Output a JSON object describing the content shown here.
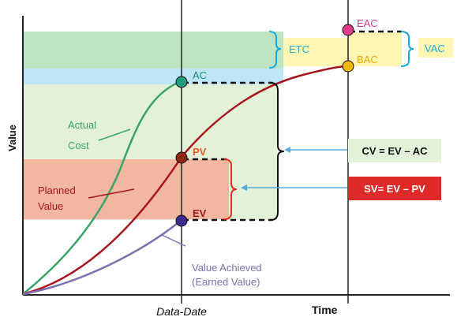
{
  "labels": {
    "y_axis": "Value",
    "x_axis": "Time",
    "data_date": "Data-Date",
    "actual_cost_line1": "Actual",
    "actual_cost_line2": "Cost",
    "planned_value_line1": "Planned",
    "planned_value_line2": "Value",
    "earned_value_line1": "Value Achieved",
    "earned_value_line2": "(Earned Value)",
    "ac": "AC",
    "pv": "PV",
    "ev": "EV",
    "etc": "ETC",
    "eac": "EAC",
    "bac": "BAC",
    "vac": "VAC",
    "cv_formula": "CV = EV – AC",
    "sv_formula": "SV= EV – PV"
  },
  "colors": {
    "actual_cost": "#3aa36a",
    "planned_value": "#a8141c",
    "earned_value": "#7f6fb0",
    "green_band": "#bfe4c4",
    "blue_band": "#bfe6f7",
    "light_green_band": "#e4f1d9",
    "red_band": "#f2b7a0",
    "yellow_band": "#fff6b3",
    "blue_label": "#1aa9d8",
    "eac_pink": "#e03a8a",
    "bac_gold": "#f5b800",
    "pv_orange": "#e05a1f"
  }
}
